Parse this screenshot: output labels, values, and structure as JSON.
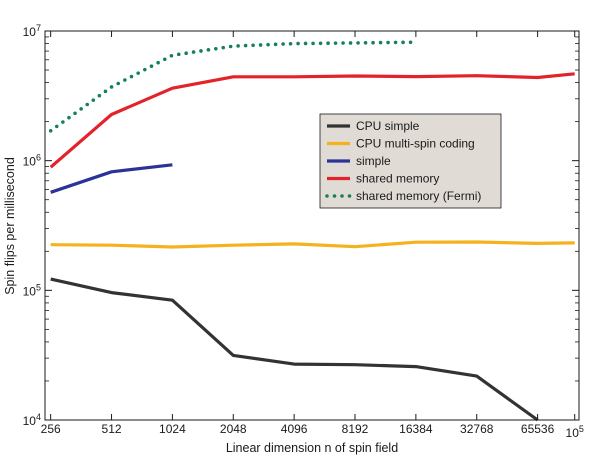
{
  "chart_data": {
    "type": "line",
    "title": "",
    "xlabel": "Linear dimension n of spin field",
    "ylabel": "Spin flips per millisecond",
    "xscale": "log2",
    "yscale": "log10",
    "xlim": [
      240,
      105000
    ],
    "ylim": [
      10000,
      10000000
    ],
    "xticks": [
      {
        "value": 256,
        "label": "256"
      },
      {
        "value": 512,
        "label": "512"
      },
      {
        "value": 1024,
        "label": "1024"
      },
      {
        "value": 2048,
        "label": "2048"
      },
      {
        "value": 4096,
        "label": "4096"
      },
      {
        "value": 8192,
        "label": "8192"
      },
      {
        "value": 16384,
        "label": "16384"
      },
      {
        "value": 32768,
        "label": "32768"
      },
      {
        "value": 65536,
        "label": "65536"
      },
      {
        "value": 100000,
        "label": "10",
        "sup": "5"
      }
    ],
    "yticks": [
      {
        "value": 10000,
        "label": "10",
        "sup": "4"
      },
      {
        "value": 100000,
        "label": "10",
        "sup": "5"
      },
      {
        "value": 1000000,
        "label": "10",
        "sup": "6"
      },
      {
        "value": 10000000,
        "label": "10",
        "sup": "7"
      }
    ],
    "grid": false,
    "legend_position": "center-right",
    "series": [
      {
        "name": "CPU simple",
        "color": "#333333",
        "style": "solid",
        "x": [
          256,
          512,
          1024,
          2048,
          4096,
          8192,
          16384,
          32768,
          65536
        ],
        "y": [
          122000,
          96000,
          84000,
          31500,
          27000,
          26700,
          25800,
          21800,
          10000
        ]
      },
      {
        "name": "CPU multi-spin coding",
        "color": "#f5b21e",
        "style": "solid",
        "x": [
          256,
          512,
          1024,
          2048,
          4096,
          8192,
          16384,
          32768,
          65536,
          100000
        ],
        "y": [
          225000,
          223000,
          216000,
          223000,
          228000,
          217000,
          235000,
          236000,
          230000,
          232000
        ]
      },
      {
        "name": "simple",
        "color": "#2b3496",
        "style": "solid",
        "x": [
          256,
          512,
          1024
        ],
        "y": [
          570000,
          820000,
          930000
        ]
      },
      {
        "name": "shared memory",
        "color": "#e3222a",
        "style": "solid",
        "x": [
          256,
          512,
          1024,
          2048,
          4096,
          8192,
          16384,
          32768,
          65536,
          100000
        ],
        "y": [
          890000,
          2270000,
          3620000,
          4430000,
          4430000,
          4500000,
          4450000,
          4520000,
          4380000,
          4680000
        ]
      },
      {
        "name": "shared memory (Fermi)",
        "color": "#15805a",
        "style": "dotted",
        "x": [
          256,
          512,
          1024,
          2048,
          4096,
          8192,
          16384
        ],
        "y": [
          1700000,
          3700000,
          6500000,
          7650000,
          8000000,
          8100000,
          8200000
        ]
      }
    ]
  }
}
